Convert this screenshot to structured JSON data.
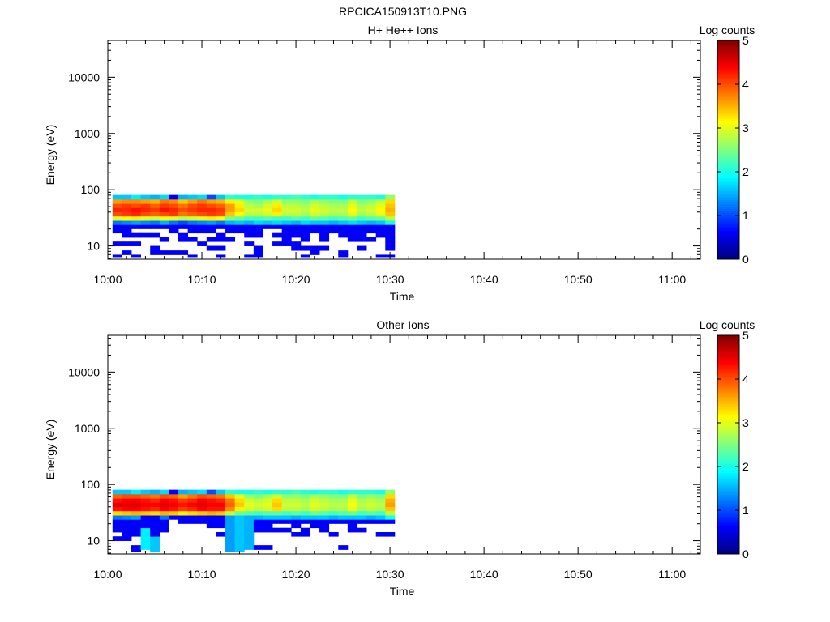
{
  "figure": {
    "title": "RPCICA150913T10.PNG"
  },
  "colorscale": [
    "#00007f",
    "#0000ff",
    "#007fff",
    "#00ffff",
    "#7fff7f",
    "#ffff00",
    "#ff7f00",
    "#ff0000",
    "#7f0000"
  ],
  "chart_data": [
    {
      "type": "heatmap",
      "title": "H+ He++ Ions",
      "xlabel": "Time",
      "ylabel": "Energy (eV)",
      "x_tick_labels": [
        "10:00",
        "10:10",
        "10:20",
        "10:30",
        "10:40",
        "10:50",
        "11:00"
      ],
      "x_range_minutes": [
        0,
        63
      ],
      "data_x_range_minutes": [
        0.5,
        30.5
      ],
      "y_scale": "log",
      "y_range": [
        5.8,
        45000
      ],
      "y_tick_labels": [
        "10",
        "100",
        "1000",
        "10000"
      ],
      "y_tick_values": [
        10,
        100,
        1000,
        10000
      ],
      "energy_bins_eV": [
        6.4,
        7.6,
        9.1,
        11,
        13,
        15.5,
        18.5,
        22,
        26,
        31,
        37,
        44,
        52,
        62,
        74,
        88
      ],
      "colorbar": {
        "label": "Log counts",
        "min": 0,
        "max": 5,
        "tick_labels": [
          "0",
          "1",
          "2",
          "3",
          "4",
          "5"
        ]
      },
      "values": [
        [
          0.6,
          0,
          0.6,
          0,
          0,
          0,
          0,
          0,
          0.6,
          0,
          0,
          0.6,
          0,
          0,
          0.6,
          0.6,
          0,
          0,
          0,
          0,
          0.6,
          0,
          0,
          0,
          0.6,
          0,
          0,
          0,
          0.6,
          0.6
        ],
        [
          0,
          0.6,
          0,
          0,
          0.6,
          0.6,
          0.6,
          0.6,
          0,
          0,
          0,
          0,
          0,
          0,
          0,
          0.6,
          0,
          0,
          0,
          0,
          0,
          0.6,
          0,
          0,
          0.6,
          0,
          0,
          0,
          0,
          0
        ],
        [
          0,
          0,
          0,
          0,
          0.6,
          0,
          0,
          0,
          0,
          0,
          0.6,
          0.6,
          0,
          0,
          0,
          0.6,
          0,
          0,
          0,
          0.6,
          0.6,
          0.6,
          0.6,
          0,
          0,
          0,
          0.6,
          0,
          0,
          0.6
        ],
        [
          0.6,
          0.6,
          0.6,
          0,
          0,
          0,
          0,
          0,
          0,
          0.6,
          0,
          0,
          0,
          0,
          0.6,
          0,
          0,
          0.6,
          0.6,
          0.6,
          0,
          0,
          0,
          0,
          0,
          0,
          0,
          0,
          0,
          0.6
        ],
        [
          0,
          0,
          0,
          0,
          0,
          0.6,
          0,
          0.6,
          0.6,
          0,
          0.6,
          0.6,
          0.6,
          0,
          0,
          0,
          0,
          0,
          0.6,
          0,
          0.6,
          0,
          0.6,
          0,
          0,
          0.6,
          0.6,
          0.6,
          0,
          0.6
        ],
        [
          0,
          0.6,
          0.6,
          0.6,
          0.6,
          0,
          0,
          0.6,
          0,
          0,
          0,
          0.6,
          0,
          0,
          0.6,
          0.6,
          0,
          0.6,
          0.6,
          0.6,
          0.6,
          0,
          0.6,
          0,
          0.6,
          0.6,
          0.6,
          0,
          0.6,
          0.6
        ],
        [
          0.6,
          0.6,
          0,
          0,
          0,
          0,
          0.6,
          0,
          0.6,
          0.6,
          0.6,
          0,
          0.6,
          0.6,
          0.6,
          0.6,
          0,
          0,
          0.6,
          0.6,
          0.6,
          0.6,
          0.6,
          0.6,
          0.6,
          0.6,
          0.6,
          0.6,
          0.6,
          0.6
        ],
        [
          0.6,
          0.6,
          0.6,
          0.6,
          0.6,
          0.6,
          0.6,
          0.6,
          0.6,
          0.6,
          0.6,
          0.6,
          0.6,
          0.6,
          0.6,
          0.6,
          0.6,
          0.6,
          0.6,
          0.6,
          0.6,
          0.6,
          0.6,
          0.6,
          0.6,
          0.6,
          0.6,
          0.6,
          0.6,
          0.6
        ],
        [
          1.2,
          1.3,
          1.4,
          1.3,
          1.2,
          1.5,
          1.2,
          1.0,
          1.2,
          1.3,
          1.4,
          1.2,
          1.5,
          1.6,
          1.5,
          1.7,
          1.6,
          1.7,
          1.6,
          1.5,
          1.7,
          1.6,
          1.6,
          1.5,
          1.6,
          1.7,
          1.6,
          1.5,
          1.6,
          2.0
        ],
        [
          3.0,
          3.1,
          3.2,
          3.0,
          2.9,
          3.1,
          3.0,
          2.8,
          2.9,
          3.0,
          3.2,
          3.1,
          2.5,
          2.4,
          2.2,
          2.2,
          2.3,
          2.2,
          2.2,
          2.3,
          2.2,
          2.4,
          2.3,
          2.2,
          2.3,
          2.4,
          2.2,
          2.3,
          2.4,
          2.8
        ],
        [
          4.0,
          4.1,
          4.2,
          4.0,
          3.9,
          4.0,
          4.1,
          3.8,
          3.9,
          4.0,
          4.1,
          4.0,
          3.4,
          3.1,
          2.8,
          2.8,
          2.9,
          3.2,
          2.8,
          2.8,
          2.7,
          2.9,
          2.8,
          2.7,
          2.7,
          3.0,
          2.7,
          2.8,
          3.0,
          3.4
        ],
        [
          4.2,
          4.2,
          4.3,
          4.2,
          4.1,
          4.3,
          4.2,
          4.0,
          4.1,
          4.2,
          4.2,
          4.1,
          3.6,
          3.3,
          2.9,
          2.9,
          3.0,
          3.3,
          2.9,
          2.9,
          2.8,
          3.0,
          2.9,
          2.8,
          2.8,
          3.1,
          2.8,
          2.9,
          3.1,
          3.5
        ],
        [
          4.0,
          4.1,
          4.0,
          4.1,
          3.9,
          4.1,
          4.0,
          3.8,
          4.0,
          4.1,
          4.0,
          3.9,
          3.6,
          3.2,
          2.8,
          2.7,
          2.9,
          3.2,
          2.8,
          2.8,
          2.7,
          2.9,
          2.8,
          2.7,
          2.7,
          3.0,
          2.7,
          2.8,
          3.0,
          3.4
        ],
        [
          3.6,
          3.7,
          3.7,
          3.6,
          3.5,
          3.8,
          3.7,
          3.4,
          3.6,
          3.8,
          3.6,
          3.5,
          3.2,
          3.0,
          2.6,
          2.5,
          2.7,
          2.9,
          2.6,
          2.6,
          2.5,
          2.7,
          2.6,
          2.5,
          2.5,
          2.8,
          2.5,
          2.6,
          2.8,
          3.3
        ],
        [
          1.6,
          1.6,
          1.8,
          1.6,
          1.5,
          1.7,
          0.6,
          1.5,
          1.6,
          1.7,
          1.0,
          1.6,
          2.1,
          2.0,
          2.0,
          2.1,
          2.0,
          2.1,
          2.1,
          2.2,
          2.1,
          2.0,
          2.1,
          2.1,
          2.0,
          2.1,
          2.1,
          2.1,
          2.0,
          2.6
        ],
        [
          null,
          null,
          null,
          null,
          null,
          null,
          null,
          null,
          null,
          null,
          null,
          null,
          null,
          null,
          null,
          null,
          null,
          null,
          null,
          null,
          null,
          null,
          null,
          null,
          null,
          null,
          null,
          null,
          null,
          null
        ]
      ]
    },
    {
      "type": "heatmap",
      "title": "Other Ions",
      "xlabel": "Time",
      "ylabel": "Energy (eV)",
      "x_tick_labels": [
        "10:00",
        "10:10",
        "10:20",
        "10:30",
        "10:40",
        "10:50",
        "11:00"
      ],
      "x_range_minutes": [
        0,
        63
      ],
      "data_x_range_minutes": [
        0.5,
        30.5
      ],
      "y_scale": "log",
      "y_range": [
        5.8,
        45000
      ],
      "y_tick_labels": [
        "10",
        "100",
        "1000",
        "10000"
      ],
      "y_tick_values": [
        10,
        100,
        1000,
        10000
      ],
      "energy_bins_eV": [
        6.4,
        7.6,
        9.1,
        11,
        13,
        15.5,
        18.5,
        22,
        26,
        31,
        37,
        44,
        52,
        62,
        74,
        88
      ],
      "colorbar": {
        "label": "Log counts",
        "min": 0,
        "max": 5,
        "tick_labels": [
          "0",
          "1",
          "2",
          "3",
          "4",
          "5"
        ]
      },
      "values": [
        [
          0,
          0,
          0.6,
          0,
          1.6,
          0,
          0,
          0,
          0,
          0,
          0,
          0,
          1.4,
          1.6,
          0,
          0,
          0,
          0,
          0,
          0,
          0,
          0,
          0,
          0,
          0,
          0,
          0,
          0,
          0,
          0
        ],
        [
          0,
          0,
          0.6,
          1.8,
          1.6,
          0,
          0,
          0,
          0,
          0,
          0,
          0,
          1.4,
          1.6,
          1.5,
          0.6,
          0.6,
          0,
          0,
          0,
          0,
          0,
          0,
          0,
          0.6,
          0,
          0,
          0,
          0,
          0
        ],
        [
          0,
          0,
          0,
          1.8,
          1.6,
          0,
          0,
          0,
          0,
          0,
          0,
          0,
          1.4,
          1.6,
          1.5,
          0,
          0,
          0,
          0,
          0,
          0,
          0,
          0,
          0,
          0,
          0,
          0,
          0,
          0,
          0
        ],
        [
          0.6,
          0.6,
          0,
          1.8,
          1.6,
          0,
          0,
          0,
          0,
          0,
          0,
          0,
          1.4,
          1.6,
          1.5,
          0,
          0,
          0,
          0,
          0,
          0,
          0,
          0,
          0,
          0,
          0,
          0,
          0,
          0,
          0
        ],
        [
          0,
          0.6,
          0.6,
          1.8,
          0.6,
          0,
          0,
          0,
          0,
          0,
          0,
          0.6,
          1.4,
          1.6,
          1.5,
          0,
          0,
          0,
          0,
          0.6,
          0.6,
          0,
          0,
          0.6,
          0,
          0,
          0,
          0,
          0.6,
          0.6
        ],
        [
          0.6,
          0.6,
          0.6,
          1.8,
          0.6,
          0.6,
          0,
          0,
          0,
          0,
          0,
          0,
          1.4,
          1.6,
          1.5,
          0.6,
          0.6,
          0.6,
          0.6,
          0,
          0.6,
          0,
          0.6,
          0,
          0,
          0.6,
          0.6,
          0,
          0,
          0
        ],
        [
          0.6,
          0.6,
          0.6,
          0.6,
          0.6,
          0.6,
          0,
          0,
          0,
          0,
          0.6,
          0.6,
          1.4,
          1.6,
          1.5,
          0.6,
          0.6,
          0,
          0,
          0.6,
          0,
          0.6,
          0.6,
          0,
          0,
          0.6,
          0,
          0,
          0,
          0
        ],
        [
          0.6,
          0.6,
          0.6,
          0.6,
          0.6,
          0.6,
          0,
          0.6,
          0.6,
          0.6,
          0.6,
          0.6,
          1.4,
          1.6,
          1.5,
          0.6,
          0.6,
          0.6,
          0.6,
          0.6,
          0.6,
          0.6,
          0.6,
          0.6,
          0.6,
          0.6,
          0.6,
          0.6,
          0.6,
          0.6
        ],
        [
          1.2,
          1.3,
          1.4,
          0.6,
          0.6,
          1.2,
          0.6,
          0.6,
          0.6,
          0.6,
          0.6,
          0.6,
          1.4,
          1.6,
          1.5,
          1.5,
          1.6,
          1.6,
          1.6,
          1.5,
          1.6,
          1.6,
          1.6,
          1.5,
          1.6,
          1.6,
          1.6,
          1.5,
          1.6,
          2.0
        ],
        [
          3.3,
          3.4,
          3.5,
          3.4,
          3.3,
          3.5,
          3.4,
          3.2,
          3.3,
          3.4,
          3.5,
          3.4,
          2.8,
          2.4,
          2.3,
          2.2,
          2.3,
          2.3,
          2.2,
          2.3,
          2.2,
          2.4,
          2.3,
          2.2,
          2.3,
          2.4,
          2.2,
          2.3,
          2.2,
          2.8
        ],
        [
          4.3,
          4.4,
          4.4,
          4.3,
          4.2,
          4.4,
          4.3,
          4.1,
          4.2,
          4.4,
          4.3,
          4.3,
          3.7,
          3.2,
          2.9,
          2.8,
          2.9,
          3.3,
          2.8,
          2.8,
          2.7,
          2.9,
          2.8,
          2.7,
          2.7,
          3.0,
          2.7,
          2.8,
          2.7,
          3.4
        ],
        [
          4.5,
          4.5,
          4.5,
          4.4,
          4.4,
          4.5,
          4.4,
          4.3,
          4.4,
          4.5,
          4.4,
          4.4,
          3.9,
          3.4,
          3.0,
          2.9,
          3.0,
          3.4,
          2.9,
          2.9,
          2.8,
          3.0,
          2.9,
          2.8,
          2.8,
          3.1,
          2.8,
          2.9,
          2.8,
          3.6
        ],
        [
          4.3,
          4.4,
          4.4,
          4.3,
          4.2,
          4.4,
          4.3,
          4.1,
          4.2,
          4.4,
          4.3,
          4.2,
          3.8,
          3.3,
          2.9,
          2.8,
          2.9,
          3.3,
          2.8,
          2.8,
          2.7,
          2.9,
          2.8,
          2.7,
          2.7,
          3.0,
          2.7,
          2.8,
          2.7,
          3.5
        ],
        [
          3.9,
          4.0,
          4.0,
          3.9,
          3.8,
          4.0,
          3.9,
          3.6,
          3.8,
          4.0,
          3.9,
          3.8,
          3.4,
          3.0,
          2.6,
          2.5,
          2.7,
          2.9,
          2.6,
          2.6,
          2.5,
          2.7,
          2.6,
          2.5,
          2.5,
          2.8,
          2.5,
          2.6,
          2.5,
          3.3
        ],
        [
          1.6,
          1.6,
          1.8,
          1.6,
          1.5,
          1.7,
          0.6,
          1.5,
          1.6,
          1.7,
          1.0,
          1.6,
          2.1,
          2.0,
          2.0,
          2.1,
          2.0,
          2.1,
          2.1,
          2.2,
          2.1,
          2.0,
          2.1,
          2.1,
          2.0,
          2.1,
          2.1,
          2.1,
          2.0,
          2.6
        ],
        [
          null,
          null,
          null,
          null,
          null,
          null,
          null,
          null,
          null,
          null,
          null,
          null,
          null,
          null,
          null,
          null,
          null,
          null,
          null,
          null,
          null,
          null,
          null,
          null,
          null,
          null,
          null,
          null,
          null,
          null
        ]
      ]
    }
  ]
}
